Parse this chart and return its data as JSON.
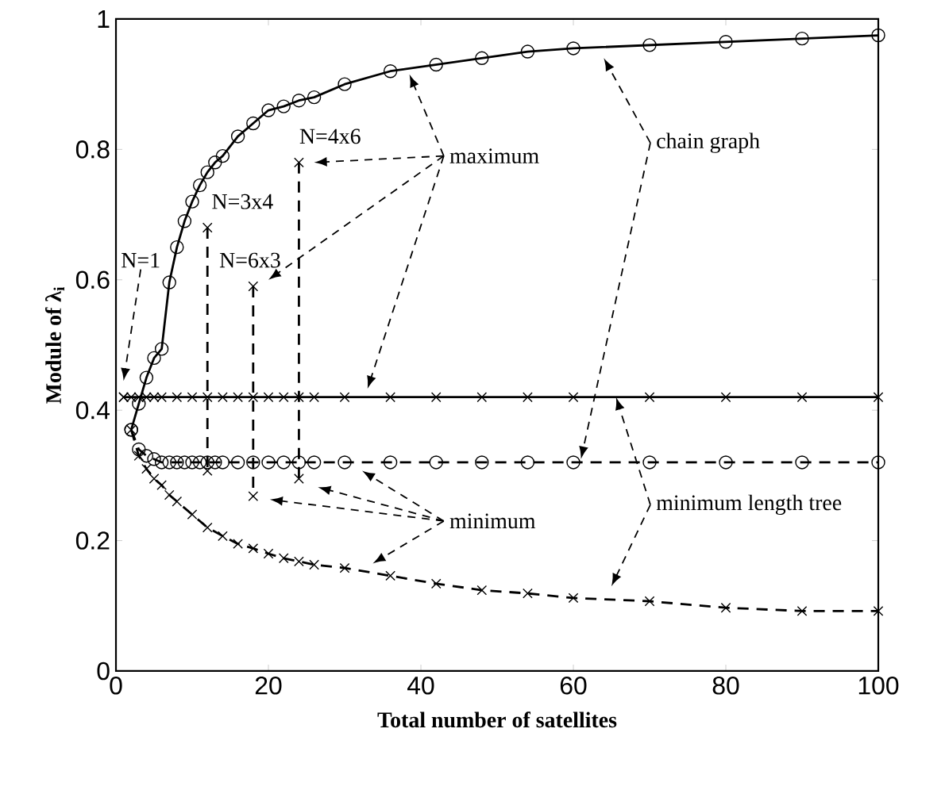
{
  "chart_data": {
    "type": "line",
    "xlabel": "Total number of satellites",
    "ylabel": "Module of λ$_{i}$",
    "xlim": [
      0,
      100
    ],
    "ylim": [
      0,
      1
    ],
    "xticks": [
      0,
      20,
      40,
      60,
      80,
      100
    ],
    "yticks": [
      0,
      0.2,
      0.4,
      0.6,
      0.8,
      1
    ],
    "grid": false,
    "series": [
      {
        "color": "#000000",
        "marker": "circle",
        "line_style": "solid",
        "x": [
          2,
          3,
          4,
          5,
          6,
          7,
          8,
          9,
          10,
          11,
          12,
          13,
          14,
          16,
          18,
          20,
          22,
          24,
          26,
          30,
          36,
          42,
          48,
          54,
          60,
          70,
          80,
          90,
          100
        ],
        "values": [
          0.37,
          0.41,
          0.45,
          0.48,
          0.494,
          0.596,
          0.65,
          0.69,
          0.72,
          0.745,
          0.765,
          0.78,
          0.79,
          0.82,
          0.84,
          0.86,
          0.866,
          0.875,
          0.88,
          0.9,
          0.92,
          0.93,
          0.94,
          0.95,
          0.955,
          0.96,
          0.965,
          0.97,
          0.975
        ]
      },
      {
        "color": "#000000",
        "marker": "circle",
        "line_style": "dashed",
        "x": [
          2,
          3,
          4,
          5,
          6,
          7,
          8,
          9,
          10,
          11,
          12,
          13,
          14,
          16,
          18,
          20,
          22,
          24,
          26,
          30,
          36,
          42,
          48,
          54,
          60,
          70,
          80,
          90,
          100
        ],
        "values": [
          0.37,
          0.34,
          0.33,
          0.325,
          0.32,
          0.32,
          0.32,
          0.32,
          0.32,
          0.32,
          0.32,
          0.32,
          0.32,
          0.32,
          0.32,
          0.32,
          0.32,
          0.32,
          0.32,
          0.32,
          0.32,
          0.32,
          0.32,
          0.32,
          0.32,
          0.32,
          0.32,
          0.32,
          0.32
        ]
      },
      {
        "color": "#000000",
        "marker": "cross",
        "line_style": "solid",
        "x": [
          1,
          2,
          3,
          4,
          5,
          6,
          8,
          10,
          12,
          14,
          16,
          18,
          20,
          22,
          24,
          26,
          30,
          36,
          42,
          48,
          54,
          60,
          70,
          80,
          90,
          100
        ],
        "values": [
          0.42,
          0.42,
          0.42,
          0.42,
          0.42,
          0.42,
          0.42,
          0.42,
          0.42,
          0.42,
          0.42,
          0.42,
          0.42,
          0.42,
          0.42,
          0.42,
          0.42,
          0.42,
          0.42,
          0.42,
          0.42,
          0.42,
          0.42,
          0.42,
          0.42,
          0.42
        ]
      },
      {
        "color": "#000000",
        "marker": "cross",
        "line_style": "dashed",
        "x": [
          2,
          3,
          4,
          5,
          6,
          7,
          8,
          10,
          12,
          14,
          16,
          18,
          20,
          22,
          24,
          26,
          30,
          36,
          42,
          48,
          54,
          60,
          70,
          80,
          90,
          100
        ],
        "values": [
          0.37,
          0.33,
          0.31,
          0.295,
          0.285,
          0.27,
          0.26,
          0.24,
          0.22,
          0.207,
          0.195,
          0.188,
          0.18,
          0.173,
          0.168,
          0.163,
          0.158,
          0.146,
          0.134,
          0.124,
          0.119,
          0.112,
          0.107,
          0.097,
          0.092,
          0.092
        ]
      },
      {
        "type": "scatter",
        "color": "#000000",
        "marker": "cross",
        "x": [
          1
        ],
        "values": [
          0.42
        ]
      },
      {
        "color": "#000000",
        "marker": "cross",
        "line_style": "dashed",
        "x": [
          12,
          12
        ],
        "values": [
          0.68,
          0.307
        ]
      },
      {
        "color": "#000000",
        "marker": "cross",
        "line_style": "dashed",
        "x": [
          18,
          18
        ],
        "values": [
          0.59,
          0.268
        ]
      },
      {
        "color": "#000000",
        "marker": "cross",
        "line_style": "dashed",
        "x": [
          24,
          24
        ],
        "values": [
          0.78,
          0.295
        ]
      }
    ],
    "annotations": [
      "N=1",
      {
        "text": "N=3x4",
        "x": 12,
        "y": 0.68
      },
      {
        "text": "N=6x3",
        "x": 18,
        "y": 0.59
      },
      {
        "text": "N=4x6",
        "x": 24,
        "y": 0.78
      },
      "maximum",
      "minimum",
      "chain graph",
      {
        "text": "minimum length tree",
        "x": 65.6,
        "y": 0.42
      }
    ]
  }
}
